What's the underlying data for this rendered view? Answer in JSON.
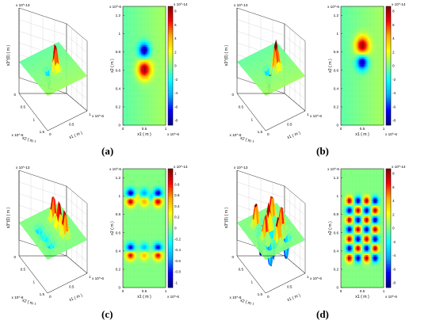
{
  "panels": [
    {
      "label": "(a)",
      "surface": {
        "zlabel": "s3^(0) ( m )",
        "zexp": "x 10^-13",
        "xlabel": "x1 ( m )",
        "xexp": "x 10^-6",
        "ylabel": "x2 ( m )",
        "yexp": "x 10^-6",
        "xticks": [
          "0",
          "0.5",
          "1"
        ],
        "yticks": [
          "0",
          "0.5",
          "1",
          "1.5"
        ]
      },
      "map": {
        "ylabel": "x2 ( m )",
        "yexp": "x 10^-6",
        "xlabel": "x1 ( m )",
        "xexp": "x 10^-6",
        "yticks": [
          "0",
          "0.2",
          "0.4",
          "0.6",
          "0.8",
          "1",
          "1.2"
        ],
        "xticks": [
          "0",
          "0.5",
          "1"
        ]
      },
      "colorbar": {
        "exp": "x 10^-14",
        "ticks": [
          "8",
          "6",
          "4",
          "2",
          "0",
          "-2",
          "-4",
          "-6",
          "-8"
        ]
      }
    },
    {
      "label": "(b)",
      "surface": {
        "zlabel": "s3^(0) ( m )",
        "zexp": "x 10^-13",
        "xlabel": "x1 ( m )",
        "xexp": "x 10^-6",
        "ylabel": "x2 ( m )",
        "yexp": "x 10^-6",
        "xticks": [
          "0",
          "0.5",
          "1"
        ],
        "yticks": [
          "0",
          "0.5",
          "1",
          "1.5"
        ]
      },
      "map": {
        "ylabel": "x2 ( m )",
        "yexp": "x 10^-6",
        "xlabel": "x1 ( m )",
        "xexp": "x 10^-6",
        "yticks": [
          "0",
          "0.2",
          "0.4",
          "0.6",
          "0.8",
          "1",
          "1.2"
        ],
        "xticks": [
          "0",
          "0.5",
          "1"
        ]
      },
      "colorbar": {
        "exp": "x 10^-14",
        "ticks": [
          "8",
          "6",
          "4",
          "2",
          "0",
          "-2",
          "-4",
          "-6",
          "-8"
        ]
      }
    },
    {
      "label": "(c)",
      "surface": {
        "zlabel": "s3^(0) ( m )",
        "zexp": "x 10^-13",
        "xlabel": "x1 ( m )",
        "xexp": "x 10^-6",
        "ylabel": "x2 ( m )",
        "yexp": "x 10^-6",
        "xticks": [
          "0",
          "0.5",
          "1"
        ],
        "yticks": [
          "0",
          "0.5",
          "1",
          "1.5"
        ]
      },
      "map": {
        "ylabel": "x2 ( m )",
        "yexp": "x 10^-6",
        "xlabel": "x1 ( m )",
        "xexp": "x 10^-6",
        "yticks": [
          "0",
          "0.2",
          "0.4",
          "0.6",
          "0.8",
          "1",
          "1.2"
        ],
        "xticks": [
          "0",
          "0.5",
          "1"
        ]
      },
      "colorbar": {
        "exp": "x 10^-13",
        "ticks": [
          "1",
          "0.8",
          "0.6",
          "0.4",
          "0.2",
          "0",
          "-0.2",
          "-0.4",
          "-0.6",
          "-0.8",
          "-1"
        ]
      }
    },
    {
      "label": "(d)",
      "surface": {
        "zlabel": "s3^(0) ( m )",
        "zexp": "x 10^-13",
        "xlabel": "x1 ( m )",
        "xexp": "x 10^-6",
        "ylabel": "x2 ( m )",
        "yexp": "x 10^-6",
        "xticks": [
          "0",
          "0.5",
          "1"
        ],
        "yticks": [
          "0",
          "0.5",
          "1",
          "1.5"
        ]
      },
      "map": {
        "ylabel": "x2 ( m )",
        "yexp": "x 10^-6",
        "xlabel": "x1 ( m )",
        "xexp": "x 10^-6",
        "yticks": [
          "0",
          "0.2",
          "0.4",
          "0.6",
          "0.8",
          "1",
          "1.2"
        ],
        "xticks": [
          "0",
          "0.5",
          "1"
        ]
      },
      "colorbar": {
        "exp": "x 10^-14",
        "ticks": [
          "8",
          "6",
          "4",
          "2",
          "0",
          "-2",
          "-4",
          "-6",
          "-8"
        ]
      }
    }
  ],
  "colormap": [
    "#00007f",
    "#0000ff",
    "#00aaff",
    "#00ffff",
    "#7fff7f",
    "#ffff00",
    "#ffaa00",
    "#ff0000",
    "#7f0000"
  ]
}
